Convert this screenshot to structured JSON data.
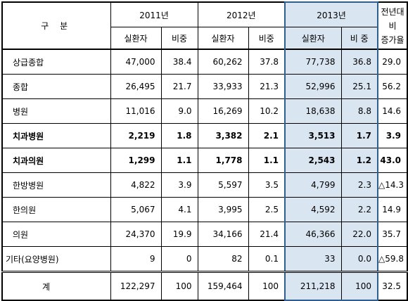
{
  "header": {
    "gubun": "구 분",
    "years": [
      "2011년",
      "2012년",
      "2013년"
    ],
    "growth": "전년대비\n증가율",
    "sub_amount": "실환자",
    "sub_share_2011": "비중",
    "sub_share_2012": "비중",
    "sub_share_2013": "비 중"
  },
  "rows": [
    {
      "name": "상급종합",
      "v2011": "47,000",
      "s2011": "38.4",
      "v2012": "60,262",
      "s2012": "37.8",
      "v2013": "77,738",
      "s2013": "36.8",
      "growth": "29.0"
    },
    {
      "name": "종합",
      "v2011": "26,495",
      "s2011": "21.7",
      "v2012": "33,933",
      "s2012": "21.3",
      "v2013": "52,996",
      "s2013": "25.1",
      "growth": "56.2"
    },
    {
      "name": "병원",
      "v2011": "11,016",
      "s2011": "9.0",
      "v2012": "16,269",
      "s2012": "10.2",
      "v2013": "18,638",
      "s2013": "8.8",
      "growth": "14.6"
    },
    {
      "name": "치과병원",
      "v2011": "2,219",
      "s2011": "1.8",
      "v2012": "3,382",
      "s2012": "2.1",
      "v2013": "3,513",
      "s2013": "1.7",
      "growth": "3.9"
    },
    {
      "name": "치과의원",
      "v2011": "1,299",
      "s2011": "1.1",
      "v2012": "1,778",
      "s2012": "1.1",
      "v2013": "2,543",
      "s2013": "1.2",
      "growth": "43.0"
    },
    {
      "name": "한방병원",
      "v2011": "4,822",
      "s2011": "3.9",
      "v2012": "5,597",
      "s2012": "3.5",
      "v2013": "4,799",
      "s2013": "2.3",
      "growth": "△14.3"
    },
    {
      "name": "한의원",
      "v2011": "5,067",
      "s2011": "4.1",
      "v2012": "3,995",
      "s2012": "2.5",
      "v2013": "4,592",
      "s2013": "2.2",
      "growth": "14.9"
    },
    {
      "name": "의원",
      "v2011": "24,370",
      "s2011": "19.9",
      "v2012": "34,166",
      "s2012": "21.4",
      "v2013": "46,366",
      "s2013": "22.0",
      "growth": "35.7"
    },
    {
      "name": "기타(요양병원)",
      "v2011": "9",
      "s2011": "0",
      "v2012": "82",
      "s2012": "0.1",
      "v2013": "33",
      "s2013": "0.0",
      "growth": "△59.8"
    }
  ],
  "total": {
    "name": "계",
    "v2011": "122,297",
    "s2011": "100",
    "v2012": "159,464",
    "s2012": "100",
    "v2013": "211,218",
    "s2013": "100",
    "growth": "32.5"
  },
  "colors": {
    "highlight": "#d9e5f1",
    "highlight_border": "#2f5f8f"
  }
}
